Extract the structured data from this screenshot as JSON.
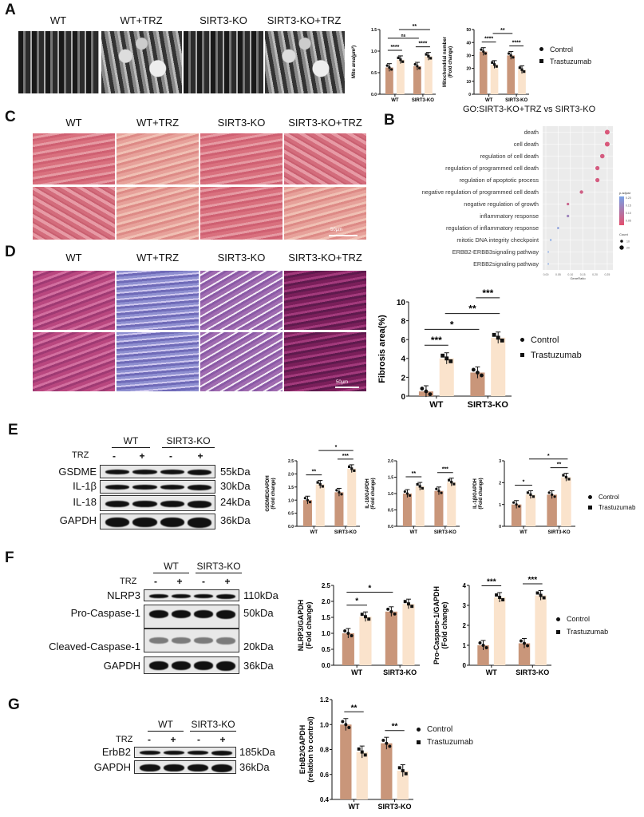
{
  "panels": {
    "A": "A",
    "B": "B",
    "C": "C",
    "D": "D",
    "E": "E",
    "F": "F",
    "G": "G"
  },
  "groups": [
    "WT",
    "WT+TRZ",
    "SIRT3-KO",
    "SIRT3-KO+TRZ"
  ],
  "panelC": {
    "scale_bar": "50μm"
  },
  "panelD": {
    "scale_bar": "50μm"
  },
  "legend": {
    "control": "Control",
    "trz": "Trastuzumab"
  },
  "colors": {
    "control": "#c9967a",
    "trz": "#fae3cc"
  },
  "blotE": {
    "wt": "WT",
    "ko": "SIRT3-KO",
    "trz": "TRZ",
    "lanes": [
      "-",
      "+",
      "-",
      "+"
    ],
    "rows": [
      {
        "name": "GSDME",
        "kda": "55kDa"
      },
      {
        "name": "IL-1β",
        "kda": "30kDa"
      },
      {
        "name": "IL-18",
        "kda": "24kDa"
      },
      {
        "name": "GAPDH",
        "kda": "36kDa"
      }
    ]
  },
  "blotF": {
    "wt": "WT",
    "ko": "SIRT3-KO",
    "trz": "TRZ",
    "lanes": [
      "-",
      "+",
      "-",
      "+"
    ],
    "rows": [
      {
        "name": "NLRP3",
        "kda": "110kDa"
      },
      {
        "name": "Pro-Caspase-1",
        "kda": "50kDa"
      },
      {
        "name": "Cleaved-Caspase-1",
        "kda": "20kDa"
      },
      {
        "name": "GAPDH",
        "kda": "36kDa"
      }
    ]
  },
  "blotG": {
    "wt": "WT",
    "ko": "SIRT3-KO",
    "trz": "TRZ",
    "lanes": [
      "-",
      "+",
      "-",
      "+"
    ],
    "rows": [
      {
        "name": "ErbB2",
        "kda": "185kDa"
      },
      {
        "name": "GAPDH",
        "kda": "36kDa"
      }
    ]
  },
  "chart_data": [
    {
      "id": "A-mito-area",
      "type": "bar",
      "categories": [
        "WT",
        "SIRT3-KO"
      ],
      "ylabel": [
        "Mito area(μm²)"
      ],
      "ylim": [
        0,
        1.5
      ],
      "yticks": [
        "0.0",
        "0.5",
        "1.0",
        "1.5"
      ],
      "series": [
        {
          "name": "Control",
          "values": [
            0.62,
            0.65
          ]
        },
        {
          "name": "Trastuzumab",
          "values": [
            0.8,
            0.88
          ]
        }
      ],
      "brackets": [
        [
          0,
          1,
          "****"
        ],
        [
          2,
          3,
          "****"
        ],
        [
          0,
          2,
          "ns"
        ],
        [
          1,
          3,
          "**"
        ]
      ]
    },
    {
      "id": "A-mito-number",
      "type": "bar",
      "categories": [
        "WT",
        "SIRT3-KO"
      ],
      "ylabel": [
        "Mitochondrial number",
        "(Fold change)"
      ],
      "ylim": [
        0,
        50
      ],
      "yticks": [
        "0",
        "10",
        "20",
        "30",
        "40",
        "50"
      ],
      "series": [
        {
          "name": "Control",
          "values": [
            33,
            30
          ]
        },
        {
          "name": "Trastuzumab",
          "values": [
            23,
            19
          ]
        }
      ],
      "brackets": [
        [
          0,
          1,
          "****"
        ],
        [
          2,
          3,
          "****"
        ],
        [
          1,
          2,
          "**"
        ]
      ]
    },
    {
      "id": "D-fibrosis",
      "type": "bar",
      "categories": [
        "WT",
        "SIRT3-KO"
      ],
      "ylabel": [
        "Fibrosis area(%)"
      ],
      "ylim": [
        0,
        10
      ],
      "yticks": [
        "0",
        "2",
        "4",
        "6",
        "8",
        "10"
      ],
      "series": [
        {
          "name": "Control",
          "values": [
            0.5,
            2.5
          ]
        },
        {
          "name": "Trastuzumab",
          "values": [
            4.0,
            6.2
          ]
        }
      ],
      "brackets": [
        [
          0,
          1,
          "***"
        ],
        [
          0,
          2,
          "*"
        ],
        [
          1,
          3,
          "**"
        ],
        [
          2,
          3,
          "***"
        ]
      ]
    },
    {
      "id": "E-gsdme",
      "type": "bar",
      "categories": [
        "WT",
        "SIRT3-KO"
      ],
      "ylabel": [
        "GSDME/GAPDH",
        "(Fold change)"
      ],
      "ylim": [
        0,
        2.5
      ],
      "yticks": [
        "0.0",
        "0.5",
        "1.0",
        "1.5",
        "2.0",
        "2.5"
      ],
      "series": [
        {
          "name": "Control",
          "values": [
            1.0,
            1.3
          ]
        },
        {
          "name": "Trastuzumab",
          "values": [
            1.6,
            2.2
          ]
        }
      ],
      "brackets": [
        [
          0,
          1,
          "**"
        ],
        [
          2,
          3,
          "***"
        ],
        [
          1,
          3,
          "*"
        ]
      ]
    },
    {
      "id": "E-il18",
      "type": "bar",
      "categories": [
        "WT",
        "SIRT3-KO"
      ],
      "ylabel": [
        "IL-18/GAPDH",
        "(Fold change)"
      ],
      "ylim": [
        0,
        2.0
      ],
      "yticks": [
        "0.0",
        "0.5",
        "1.0",
        "1.5",
        "2.0"
      ],
      "series": [
        {
          "name": "Control",
          "values": [
            1.0,
            1.08
          ]
        },
        {
          "name": "Trastuzumab",
          "values": [
            1.22,
            1.35
          ]
        }
      ],
      "brackets": [
        [
          0,
          1,
          "**"
        ],
        [
          2,
          3,
          "***"
        ]
      ]
    },
    {
      "id": "E-il1b",
      "type": "bar",
      "categories": [
        "WT",
        "SIRT3-KO"
      ],
      "ylabel": [
        "IL-1β/GAPDH",
        "(Fold change)"
      ],
      "ylim": [
        0,
        3
      ],
      "yticks": [
        "0",
        "1",
        "2",
        "3"
      ],
      "series": [
        {
          "name": "Control",
          "values": [
            1.0,
            1.45
          ]
        },
        {
          "name": "Trastuzumab",
          "values": [
            1.45,
            2.25
          ]
        }
      ],
      "brackets": [
        [
          0,
          1,
          "*"
        ],
        [
          2,
          3,
          "**"
        ],
        [
          1,
          3,
          "*"
        ]
      ]
    },
    {
      "id": "F-nlrp3",
      "type": "bar",
      "categories": [
        "WT",
        "SIRT3-KO"
      ],
      "ylabel": [
        "NLRP3/GAPDH",
        "(Fold change)"
      ],
      "ylim": [
        0,
        2.5
      ],
      "yticks": [
        "0.0",
        "0.5",
        "1.0",
        "1.5",
        "2.0",
        "2.5"
      ],
      "series": [
        {
          "name": "Control",
          "values": [
            1.0,
            1.68
          ]
        },
        {
          "name": "Trastuzumab",
          "values": [
            1.52,
            1.92
          ]
        }
      ],
      "brackets": [
        [
          0,
          1,
          "*"
        ],
        [
          0,
          2,
          "*"
        ]
      ]
    },
    {
      "id": "F-procasp1",
      "type": "bar",
      "categories": [
        "WT",
        "SIRT3-KO"
      ],
      "ylabel": [
        "Pro-Caspase-1/GAPDH",
        "(Fold change)"
      ],
      "ylim": [
        0,
        4
      ],
      "yticks": [
        "0",
        "1",
        "2",
        "3",
        "4"
      ],
      "series": [
        {
          "name": "Control",
          "values": [
            1.0,
            1.1
          ]
        },
        {
          "name": "Trastuzumab",
          "values": [
            3.4,
            3.5
          ]
        }
      ],
      "brackets": [
        [
          0,
          1,
          "***"
        ],
        [
          2,
          3,
          "***"
        ]
      ]
    },
    {
      "id": "G-erbb2",
      "type": "bar",
      "categories": [
        "WT",
        "SIRT3-KO"
      ],
      "ylabel": [
        "ErbB2/GAPDH",
        "(relation to control)"
      ],
      "ylim": [
        0.4,
        1.2
      ],
      "yticks": [
        "0.4",
        "0.6",
        "0.8",
        "1.0",
        "1.2"
      ],
      "series": [
        {
          "name": "Control",
          "values": [
            1.0,
            0.85
          ]
        },
        {
          "name": "Trastuzumab",
          "values": [
            0.78,
            0.63
          ]
        }
      ],
      "brackets": [
        [
          0,
          1,
          "**"
        ],
        [
          2,
          3,
          "**"
        ]
      ]
    },
    {
      "id": "B-go",
      "type": "scatter",
      "title": "GO:SIRT3-KO+TRZ vs SIRT3-KO",
      "xlabel": "GeneRatio",
      "xlim": [
        0,
        0.26
      ],
      "xticks": [
        "0.00",
        "0.05",
        "0.10",
        "0.15",
        "0.20",
        "0.25"
      ],
      "terms": [
        "death",
        "cell death",
        "regulation of cell death",
        "regulation of programmed cell death",
        "regulation of apoptotic process",
        "negative regulation of programmed cell death",
        "negative regulation of growth",
        "inflammatory response",
        "regulation of inflammatory response",
        "mitotic DNA integrity checkpoint",
        "ERBB2-ERBB3signaling pathway",
        "ERBB2signaling pathway"
      ],
      "gene_ratio": [
        0.25,
        0.25,
        0.23,
        0.21,
        0.21,
        0.145,
        0.09,
        0.09,
        0.05,
        0.02,
        0.01,
        0.01
      ],
      "p_adjust": [
        0.02,
        0.02,
        0.03,
        0.03,
        0.03,
        0.04,
        0.05,
        0.13,
        0.18,
        0.2,
        0.2,
        0.2
      ],
      "count": [
        22,
        22,
        20,
        18,
        18,
        14,
        8,
        8,
        5,
        3,
        1,
        1
      ],
      "legend_color_title": "p.adjust",
      "legend_color_ticks": [
        "0.20",
        "0.15",
        "0.10",
        "0.05"
      ],
      "legend_size_title": "Count",
      "legend_size_ticks": [
        "10",
        "20"
      ]
    }
  ]
}
